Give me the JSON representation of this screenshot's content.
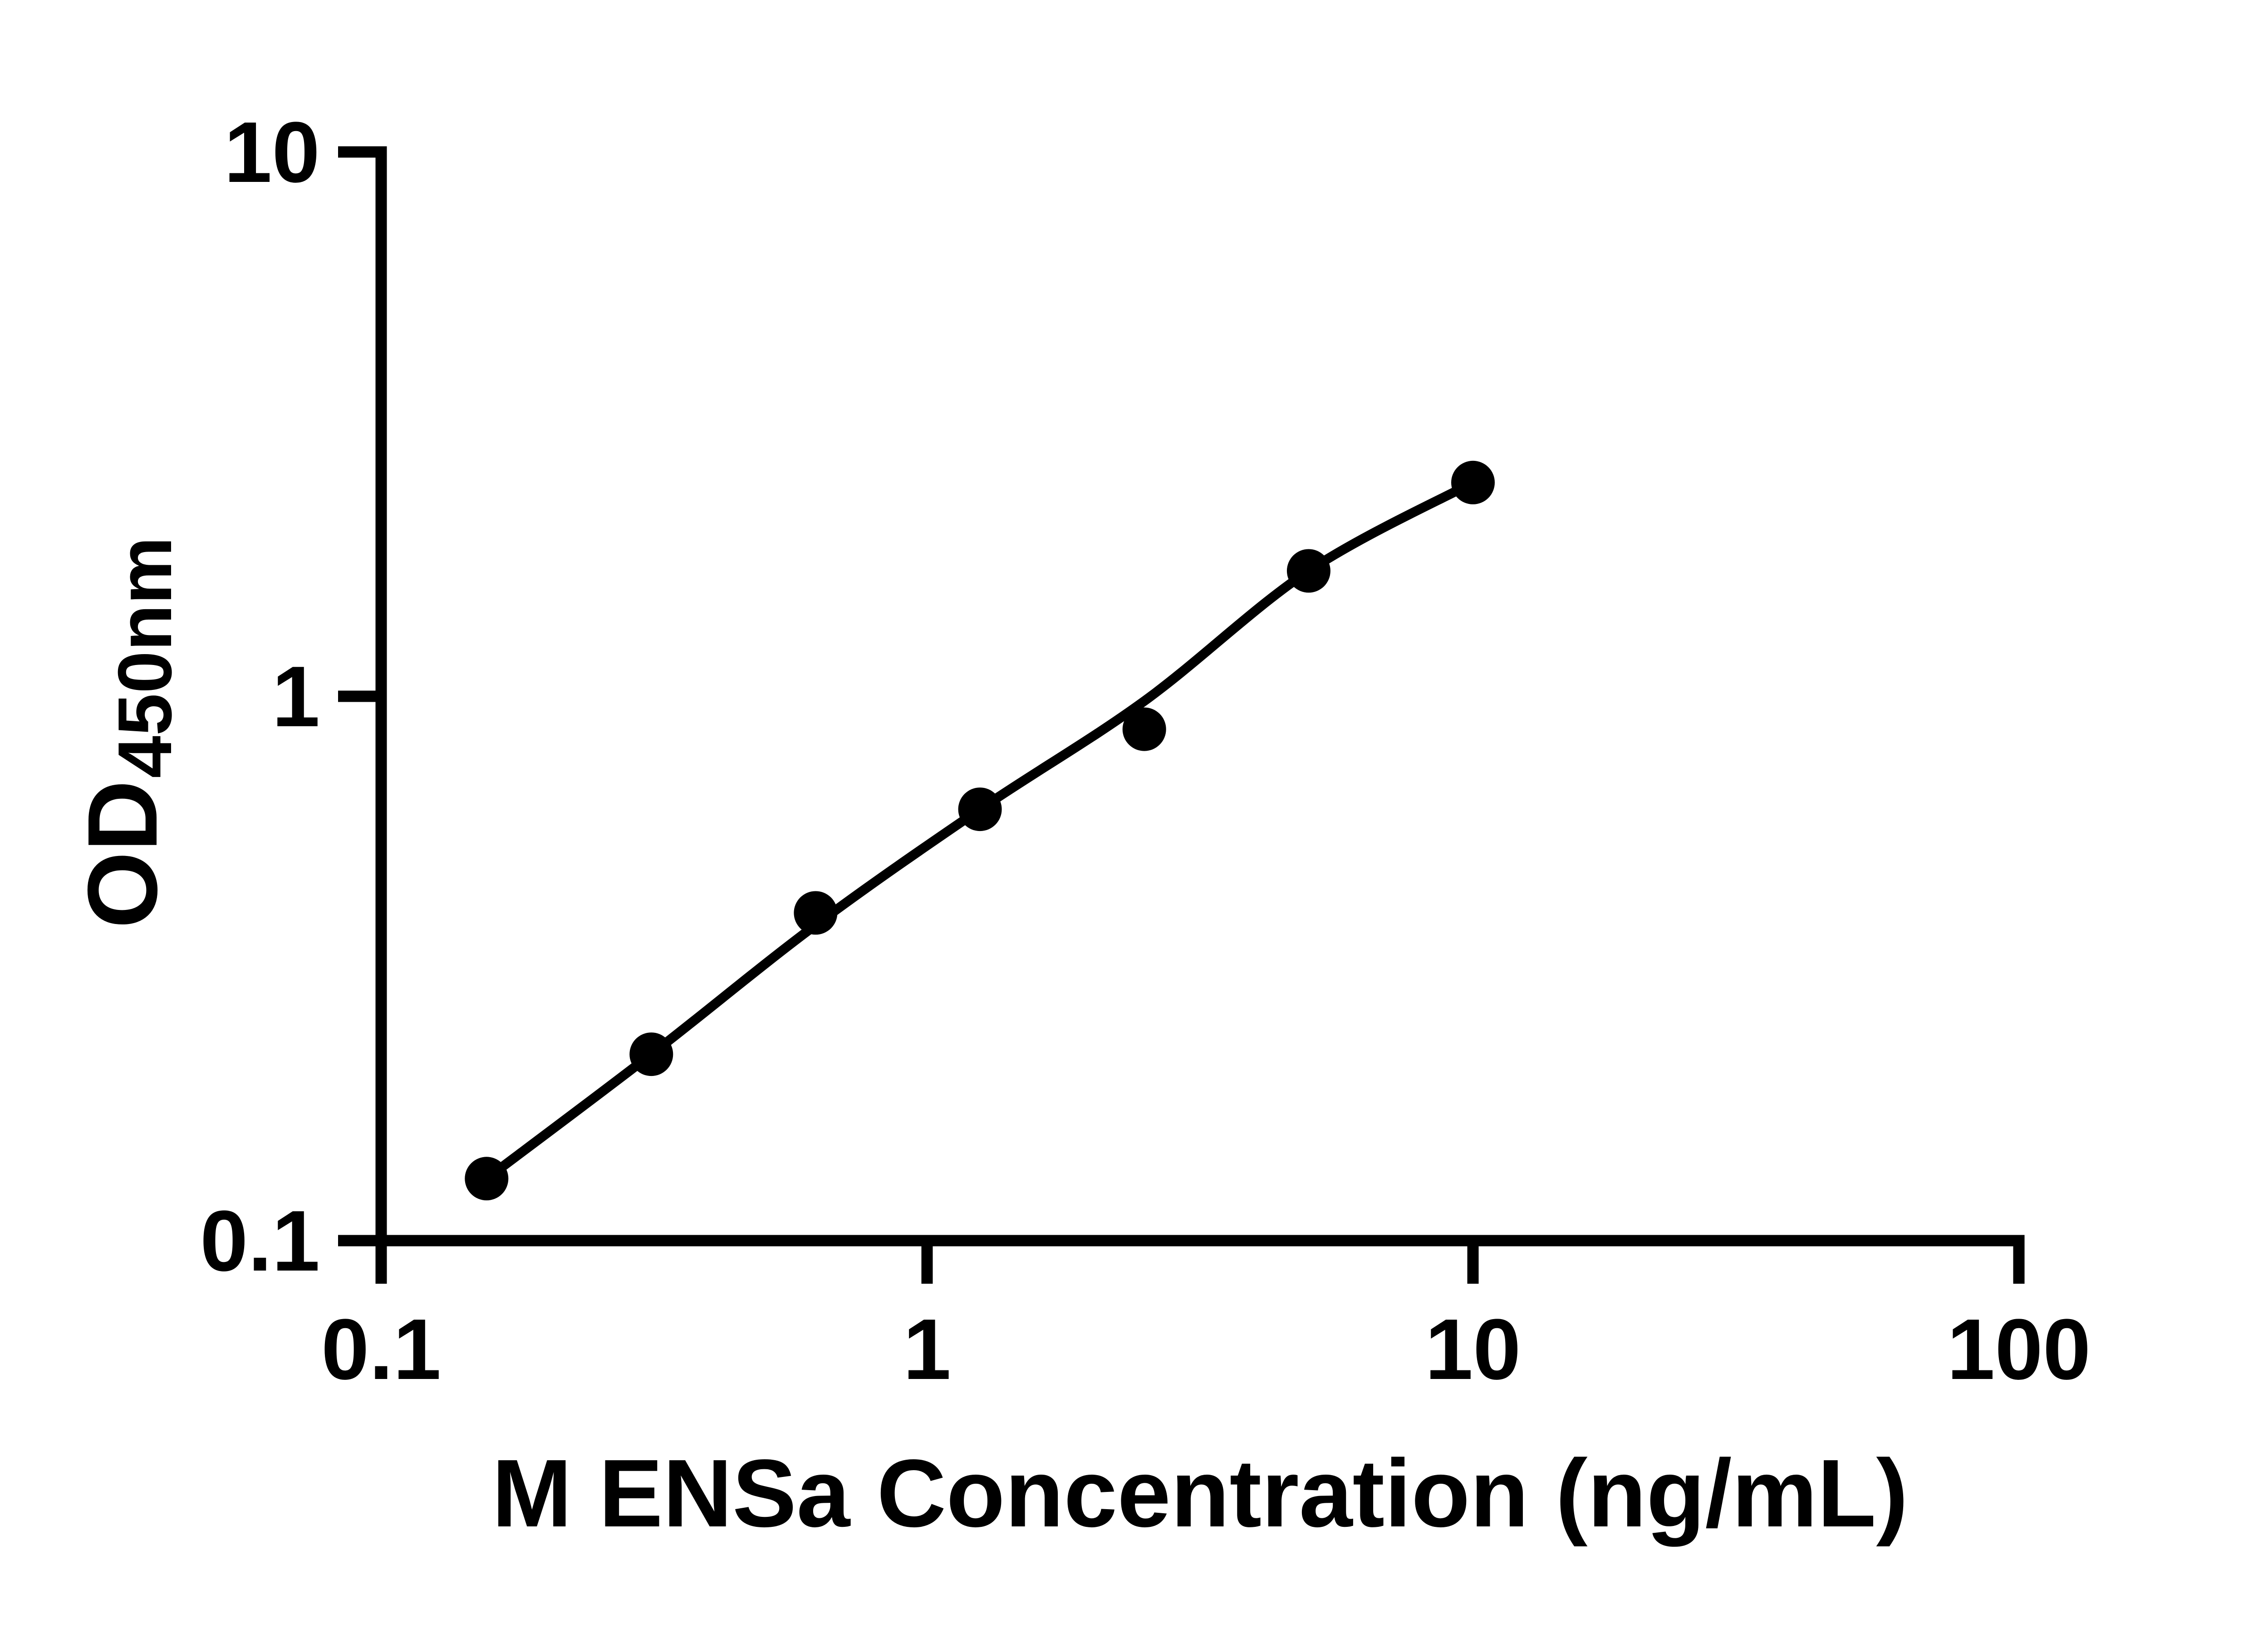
{
  "chart_data": {
    "type": "scatter",
    "title": "",
    "xlabel": "M ENSa Concentration (ng/mL)",
    "ylabel": "OD",
    "ylabel_subscript": "450nm",
    "x_scale": "log",
    "y_scale": "log",
    "xlim": [
      0.1,
      100
    ],
    "ylim": [
      0.1,
      10
    ],
    "grid": false,
    "legend": false,
    "x_ticks": [
      {
        "value": 0.1,
        "label": "0.1"
      },
      {
        "value": 1,
        "label": "1"
      },
      {
        "value": 10,
        "label": "10"
      },
      {
        "value": 100,
        "label": "100"
      }
    ],
    "y_ticks": [
      {
        "value": 0.1,
        "label": "0.1"
      },
      {
        "value": 1,
        "label": "1"
      },
      {
        "value": 10,
        "label": "10"
      }
    ],
    "series": [
      {
        "name": "standard-points",
        "type": "scatter",
        "points": [
          {
            "x": 0.156,
            "y": 0.13
          },
          {
            "x": 0.3125,
            "y": 0.22
          },
          {
            "x": 0.625,
            "y": 0.4
          },
          {
            "x": 1.25,
            "y": 0.62
          },
          {
            "x": 2.5,
            "y": 0.87
          },
          {
            "x": 5,
            "y": 1.7
          },
          {
            "x": 10,
            "y": 2.47
          }
        ]
      },
      {
        "name": "fitted-curve",
        "type": "line",
        "points": [
          {
            "x": 0.156,
            "y": 0.13
          },
          {
            "x": 0.3125,
            "y": 0.22
          },
          {
            "x": 0.625,
            "y": 0.38
          },
          {
            "x": 1.25,
            "y": 0.62
          },
          {
            "x": 2.5,
            "y": 0.98
          },
          {
            "x": 5,
            "y": 1.7
          },
          {
            "x": 10,
            "y": 2.47
          }
        ]
      }
    ],
    "colors": {
      "marker": "#000000",
      "line": "#000000",
      "axis": "#000000",
      "text": "#000000",
      "background": "#ffffff"
    }
  }
}
